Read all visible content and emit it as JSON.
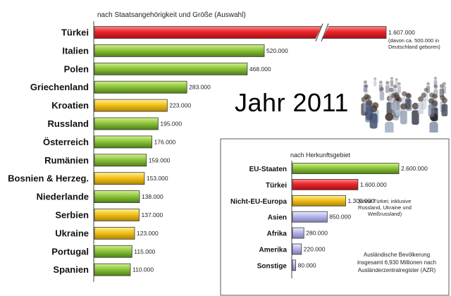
{
  "overlay": {
    "year": "Jahr 2011"
  },
  "colors": {
    "red": "#e8262b",
    "green": "#8dc63f",
    "yellow": "#f3c21b",
    "lavender": "#b7b7ea",
    "border": "#333333"
  },
  "chart_data": [
    {
      "type": "bar",
      "orientation": "horizontal",
      "title": "nach Staatsangehörigkeit und Größe (Auswahl)",
      "axis_break": true,
      "grid": false,
      "categories": [
        "Türkei",
        "Italien",
        "Polen",
        "Griechenland",
        "Kroatien",
        "Russland",
        "Österreich",
        "Rumänien",
        "Bosnien & Herzeg.",
        "Niederlande",
        "Serbien",
        "Ukraine",
        "Portugal",
        "Spanien"
      ],
      "values": [
        1607000,
        520000,
        468000,
        283000,
        223000,
        195000,
        176000,
        159000,
        153000,
        138000,
        137000,
        123000,
        115000,
        110000
      ],
      "value_labels": [
        "1.607.000",
        "520.000",
        "468.000",
        "283.000",
        "223.000",
        "195.000",
        "176.000",
        "159.000",
        "153.000",
        "138.000",
        "137.000",
        "123.000",
        "115.000",
        "110.000"
      ],
      "bar_colors": [
        "red",
        "green",
        "green",
        "green",
        "yellow",
        "green",
        "green",
        "green",
        "yellow",
        "green",
        "yellow",
        "yellow",
        "green",
        "green"
      ],
      "annotations": [
        "(davon ca. 500.000 in",
        "Deutschland geboren)"
      ]
    },
    {
      "type": "bar",
      "orientation": "horizontal",
      "title": "nach Herkunftsgebiet",
      "grid": false,
      "categories": [
        "EU-Staaten",
        "Türkei",
        "Nicht-EU-Europa",
        "Asien",
        "Afrika",
        "Amerika",
        "Sonstige"
      ],
      "values": [
        2600000,
        1600000,
        1300000,
        850000,
        280000,
        220000,
        80000
      ],
      "value_labels": [
        "2.600.000",
        "1.600.000",
        "1.300.000",
        "850.000",
        "280.000",
        "220.000",
        "80.000"
      ],
      "bar_colors": [
        "green",
        "red",
        "yellow",
        "lavender",
        "lavender",
        "lavender",
        "lavender"
      ],
      "annotations": [
        "(ohne Türkei; inklusive",
        "Russland, Ukraine und",
        "Weißrussland)"
      ],
      "footnote": [
        "Ausländische Bevölkerung",
        "insgesamt 6,930 Millionen nach",
        "Ausländerzentralregister (AZR)"
      ]
    }
  ]
}
